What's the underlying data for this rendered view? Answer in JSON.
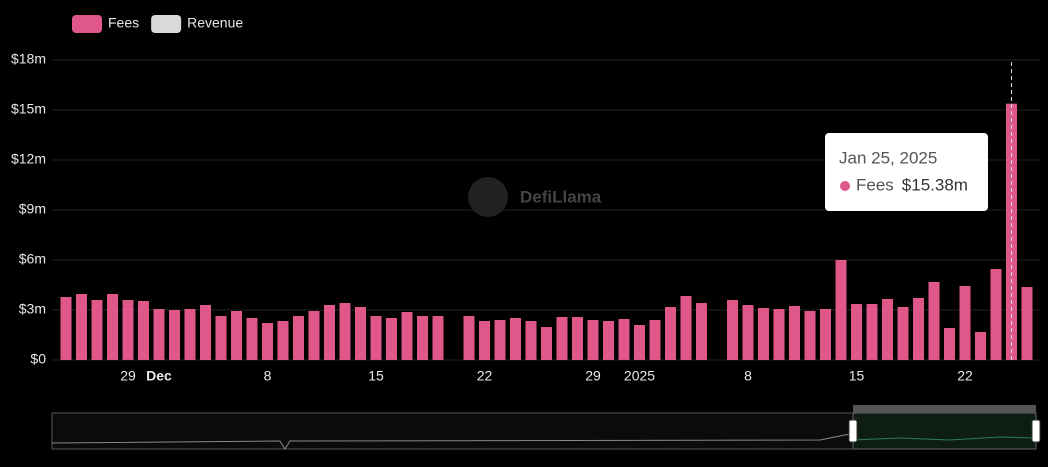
{
  "chart_data": {
    "type": "bar",
    "legend": [
      {
        "name": "Fees",
        "color": "#e0578a"
      },
      {
        "name": "Revenue",
        "color": "#d9d9d9"
      }
    ],
    "watermark": "DefiLlama",
    "categories": [
      null,
      null,
      null,
      null,
      "29",
      null,
      "Dec",
      null,
      null,
      null,
      null,
      null,
      null,
      "8",
      null,
      null,
      null,
      null,
      null,
      null,
      "15",
      null,
      null,
      null,
      null,
      null,
      null,
      "22",
      null,
      null,
      null,
      null,
      null,
      null,
      "29",
      null,
      null,
      "2025",
      null,
      null,
      null,
      null,
      null,
      null,
      "8",
      null,
      null,
      null,
      null,
      null,
      null,
      "15",
      null,
      null,
      null,
      null,
      null,
      null,
      "22",
      null,
      null,
      null,
      null
    ],
    "series": [
      {
        "name": "Fees",
        "color": "#e0578a",
        "values": [
          3.78,
          3.96,
          3.6,
          3.96,
          3.6,
          3.54,
          3.06,
          3.0,
          3.06,
          3.3,
          2.64,
          2.94,
          2.52,
          2.22,
          2.34,
          2.64,
          2.94,
          3.3,
          3.42,
          3.18,
          2.64,
          2.52,
          2.88,
          2.64,
          2.64,
          null,
          2.64,
          2.34,
          2.4,
          2.52,
          2.34,
          1.98,
          2.58,
          2.58,
          2.4,
          2.34,
          2.46,
          2.1,
          2.4,
          3.18,
          3.84,
          3.42,
          null,
          3.6,
          3.3,
          3.12,
          3.06,
          3.24,
          2.94,
          3.06,
          6.0,
          3.36,
          3.36,
          3.66,
          3.18,
          3.72,
          4.68,
          1.92,
          4.44,
          1.68,
          5.46,
          15.38,
          4.38
        ]
      }
    ],
    "ylim": [
      0,
      18
    ],
    "yticks": [
      {
        "value": 0,
        "label": "$0"
      },
      {
        "value": 3,
        "label": "$3m"
      },
      {
        "value": 6,
        "label": "$6m"
      },
      {
        "value": 9,
        "label": "$9m"
      },
      {
        "value": 12,
        "label": "$12m"
      },
      {
        "value": 15,
        "label": "$15m"
      },
      {
        "value": 18,
        "label": "$18m"
      }
    ],
    "grid": true,
    "tooltip": {
      "index": 61,
      "date": "Jan 25, 2025",
      "series": "Fees",
      "value": "$15.38m"
    }
  }
}
